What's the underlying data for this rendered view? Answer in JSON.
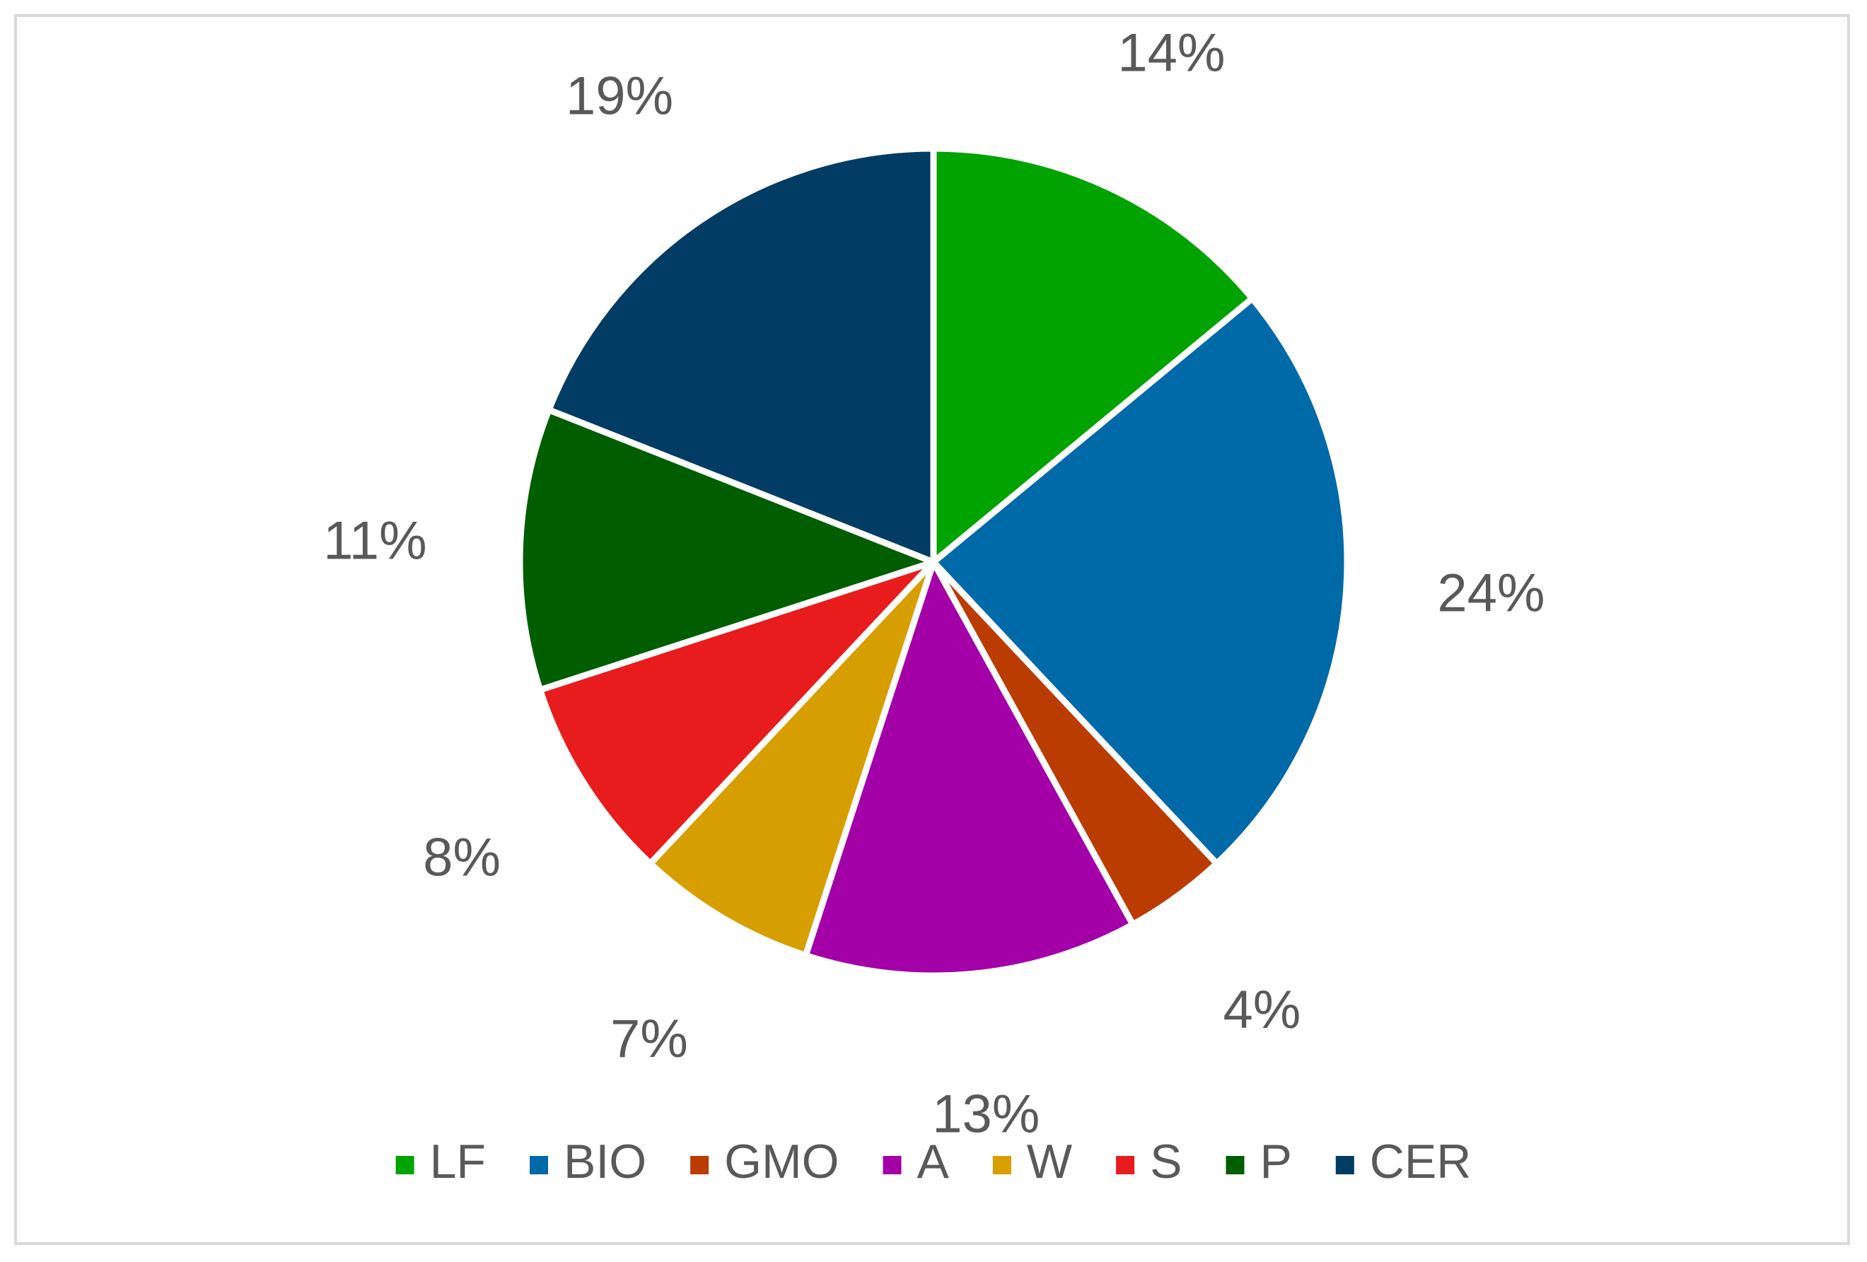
{
  "chart_data": {
    "type": "pie",
    "title": "",
    "categories": [
      "LF",
      "BIO",
      "GMO",
      "A",
      "W",
      "S",
      "P",
      "CER"
    ],
    "values": [
      14,
      24,
      4,
      13,
      7,
      8,
      11,
      19
    ],
    "value_labels": [
      "14%",
      "24%",
      "4%",
      "13%",
      "7%",
      "8%",
      "11%",
      "19%"
    ],
    "colors": [
      "#00a300",
      "#0069a8",
      "#bb3c00",
      "#a300a8",
      "#d79e00",
      "#e81c1c",
      "#005e00",
      "#003c63"
    ],
    "start_angle_deg": 0,
    "direction": "clockwise",
    "legend": {
      "position": "bottom"
    },
    "data_labels": "outside"
  }
}
